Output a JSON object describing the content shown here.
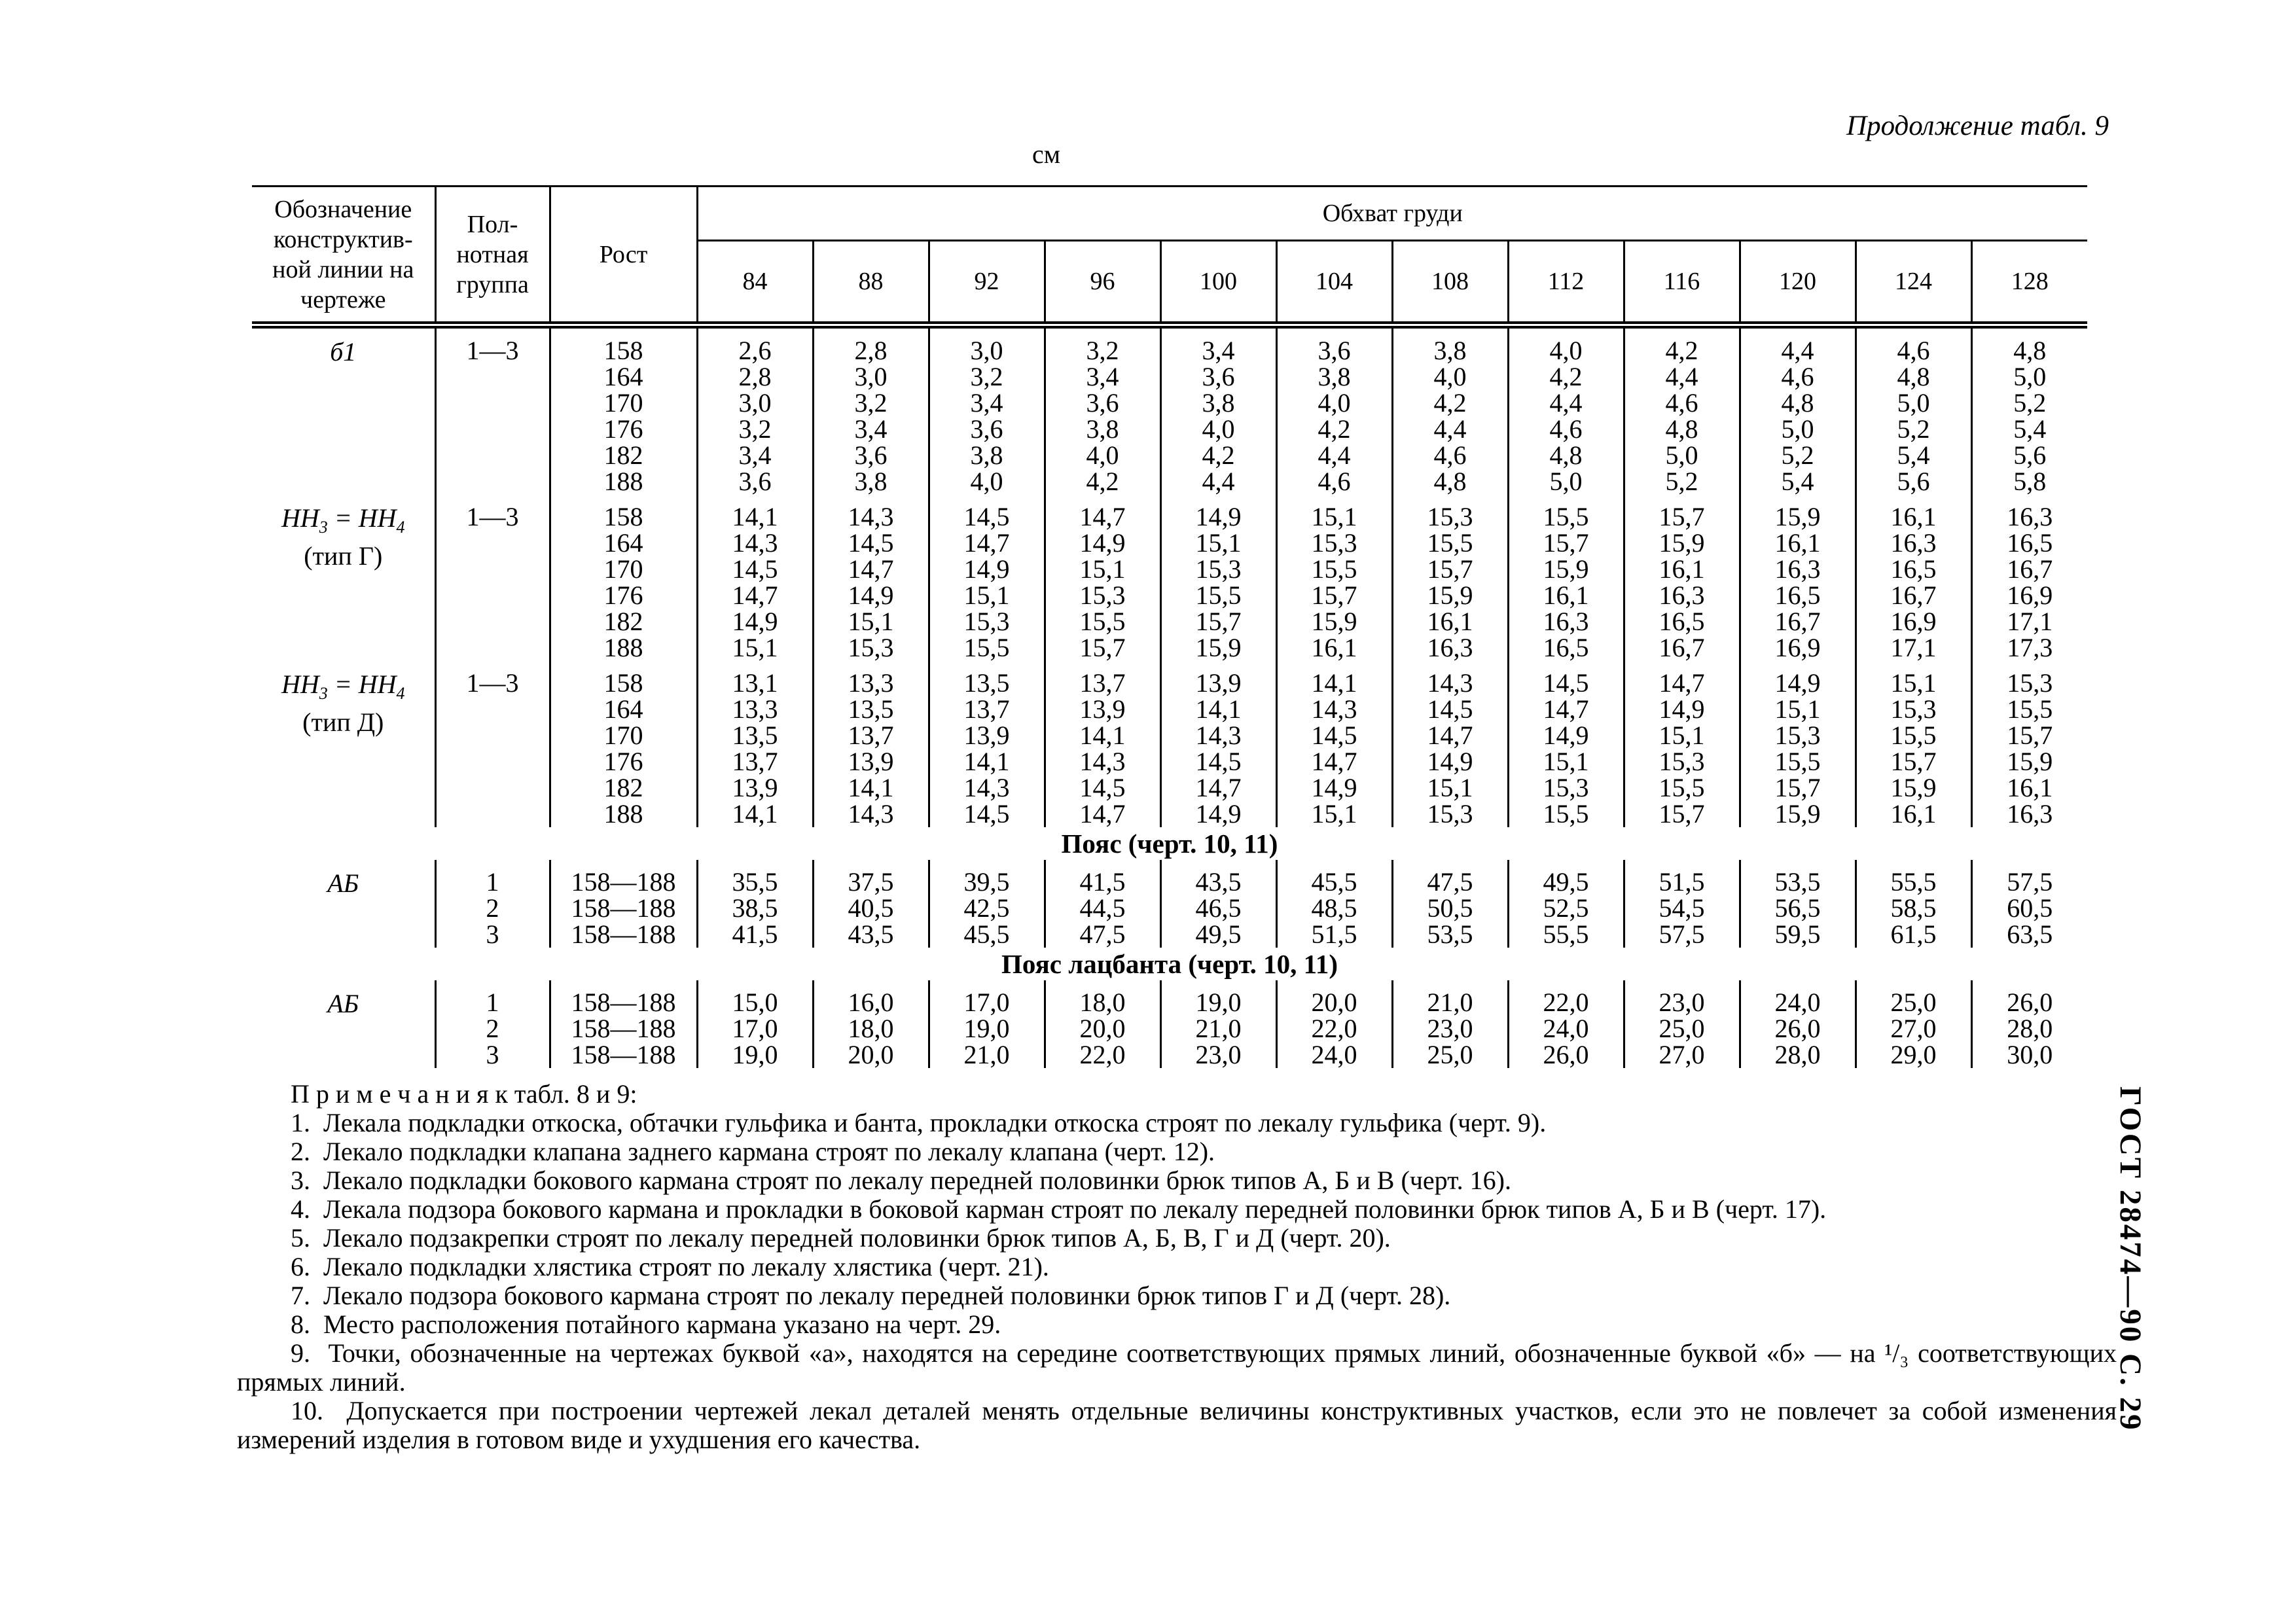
{
  "page": {
    "continuation_label": "Продолжение табл. 9",
    "units_label": "см",
    "side_label": "ГОСТ 28474—90 С. 29"
  },
  "table": {
    "header": {
      "designation_lines": [
        "Обозначение",
        "конструктив-",
        "ной линии на",
        "чертеже"
      ],
      "group_lines": [
        "Пол-",
        "нотная",
        "группа"
      ],
      "rost": "Рост",
      "chest": "Обхват груди",
      "sizes": [
        "84",
        "88",
        "92",
        "96",
        "100",
        "104",
        "108",
        "112",
        "116",
        "120",
        "124",
        "128"
      ]
    },
    "sections": [
      {
        "type": "rows",
        "blocks": [
          {
            "designation": [
              [
                {
                  "t": "б1",
                  "it": true
                }
              ]
            ],
            "group": "1—3",
            "rows": [
              {
                "rost": "158",
                "values": [
                  "2,6",
                  "2,8",
                  "3,0",
                  "3,2",
                  "3,4",
                  "3,6",
                  "3,8",
                  "4,0",
                  "4,2",
                  "4,4",
                  "4,6",
                  "4,8"
                ]
              },
              {
                "rost": "164",
                "values": [
                  "2,8",
                  "3,0",
                  "3,2",
                  "3,4",
                  "3,6",
                  "3,8",
                  "4,0",
                  "4,2",
                  "4,4",
                  "4,6",
                  "4,8",
                  "5,0"
                ]
              },
              {
                "rost": "170",
                "values": [
                  "3,0",
                  "3,2",
                  "3,4",
                  "3,6",
                  "3,8",
                  "4,0",
                  "4,2",
                  "4,4",
                  "4,6",
                  "4,8",
                  "5,0",
                  "5,2"
                ]
              },
              {
                "rost": "176",
                "values": [
                  "3,2",
                  "3,4",
                  "3,6",
                  "3,8",
                  "4,0",
                  "4,2",
                  "4,4",
                  "4,6",
                  "4,8",
                  "5,0",
                  "5,2",
                  "5,4"
                ]
              },
              {
                "rost": "182",
                "values": [
                  "3,4",
                  "3,6",
                  "3,8",
                  "4,0",
                  "4,2",
                  "4,4",
                  "4,6",
                  "4,8",
                  "5,0",
                  "5,2",
                  "5,4",
                  "5,6"
                ]
              },
              {
                "rost": "188",
                "values": [
                  "3,6",
                  "3,8",
                  "4,0",
                  "4,2",
                  "4,4",
                  "4,6",
                  "4,8",
                  "5,0",
                  "5,2",
                  "5,4",
                  "5,6",
                  "5,8"
                ]
              }
            ]
          },
          {
            "designation": [
              [
                {
                  "t": "НН",
                  "it": true
                },
                {
                  "t": "3",
                  "it": true,
                  "sub": true
                },
                {
                  "t": " = ",
                  "it": true
                },
                {
                  "t": "НН",
                  "it": true
                },
                {
                  "t": "4",
                  "it": true,
                  "sub": true
                }
              ],
              [
                {
                  "t": "(тип Г)"
                }
              ]
            ],
            "group": "1—3",
            "rows": [
              {
                "rost": "158",
                "values": [
                  "14,1",
                  "14,3",
                  "14,5",
                  "14,7",
                  "14,9",
                  "15,1",
                  "15,3",
                  "15,5",
                  "15,7",
                  "15,9",
                  "16,1",
                  "16,3"
                ]
              },
              {
                "rost": "164",
                "values": [
                  "14,3",
                  "14,5",
                  "14,7",
                  "14,9",
                  "15,1",
                  "15,3",
                  "15,5",
                  "15,7",
                  "15,9",
                  "16,1",
                  "16,3",
                  "16,5"
                ]
              },
              {
                "rost": "170",
                "values": [
                  "14,5",
                  "14,7",
                  "14,9",
                  "15,1",
                  "15,3",
                  "15,5",
                  "15,7",
                  "15,9",
                  "16,1",
                  "16,3",
                  "16,5",
                  "16,7"
                ]
              },
              {
                "rost": "176",
                "values": [
                  "14,7",
                  "14,9",
                  "15,1",
                  "15,3",
                  "15,5",
                  "15,7",
                  "15,9",
                  "16,1",
                  "16,3",
                  "16,5",
                  "16,7",
                  "16,9"
                ]
              },
              {
                "rost": "182",
                "values": [
                  "14,9",
                  "15,1",
                  "15,3",
                  "15,5",
                  "15,7",
                  "15,9",
                  "16,1",
                  "16,3",
                  "16,5",
                  "16,7",
                  "16,9",
                  "17,1"
                ]
              },
              {
                "rost": "188",
                "values": [
                  "15,1",
                  "15,3",
                  "15,5",
                  "15,7",
                  "15,9",
                  "16,1",
                  "16,3",
                  "16,5",
                  "16,7",
                  "16,9",
                  "17,1",
                  "17,3"
                ]
              }
            ]
          },
          {
            "designation": [
              [
                {
                  "t": "НН",
                  "it": true
                },
                {
                  "t": "3",
                  "it": true,
                  "sub": true
                },
                {
                  "t": " = ",
                  "it": true
                },
                {
                  "t": "НН",
                  "it": true
                },
                {
                  "t": "4",
                  "it": true,
                  "sub": true
                }
              ],
              [
                {
                  "t": "(тип Д)"
                }
              ]
            ],
            "group": "1—3",
            "rows": [
              {
                "rost": "158",
                "values": [
                  "13,1",
                  "13,3",
                  "13,5",
                  "13,7",
                  "13,9",
                  "14,1",
                  "14,3",
                  "14,5",
                  "14,7",
                  "14,9",
                  "15,1",
                  "15,3"
                ]
              },
              {
                "rost": "164",
                "values": [
                  "13,3",
                  "13,5",
                  "13,7",
                  "13,9",
                  "14,1",
                  "14,3",
                  "14,5",
                  "14,7",
                  "14,9",
                  "15,1",
                  "15,3",
                  "15,5"
                ]
              },
              {
                "rost": "170",
                "values": [
                  "13,5",
                  "13,7",
                  "13,9",
                  "14,1",
                  "14,3",
                  "14,5",
                  "14,7",
                  "14,9",
                  "15,1",
                  "15,3",
                  "15,5",
                  "15,7"
                ]
              },
              {
                "rost": "176",
                "values": [
                  "13,7",
                  "13,9",
                  "14,1",
                  "14,3",
                  "14,5",
                  "14,7",
                  "14,9",
                  "15,1",
                  "15,3",
                  "15,5",
                  "15,7",
                  "15,9"
                ]
              },
              {
                "rost": "182",
                "values": [
                  "13,9",
                  "14,1",
                  "14,3",
                  "14,5",
                  "14,7",
                  "14,9",
                  "15,1",
                  "15,3",
                  "15,5",
                  "15,7",
                  "15,9",
                  "16,1"
                ]
              },
              {
                "rost": "188",
                "values": [
                  "14,1",
                  "14,3",
                  "14,5",
                  "14,7",
                  "14,9",
                  "15,1",
                  "15,3",
                  "15,5",
                  "15,7",
                  "15,9",
                  "16,1",
                  "16,3"
                ]
              }
            ]
          }
        ]
      },
      {
        "type": "title",
        "text": "Пояс (черт. 10, 11)"
      },
      {
        "type": "rows",
        "blocks": [
          {
            "designation": [
              [
                {
                  "t": "АБ",
                  "it": true
                }
              ]
            ],
            "group": null,
            "rows": [
              {
                "group": "1",
                "rost": "158—188",
                "values": [
                  "35,5",
                  "37,5",
                  "39,5",
                  "41,5",
                  "43,5",
                  "45,5",
                  "47,5",
                  "49,5",
                  "51,5",
                  "53,5",
                  "55,5",
                  "57,5"
                ]
              },
              {
                "group": "2",
                "rost": "158—188",
                "values": [
                  "38,5",
                  "40,5",
                  "42,5",
                  "44,5",
                  "46,5",
                  "48,5",
                  "50,5",
                  "52,5",
                  "54,5",
                  "56,5",
                  "58,5",
                  "60,5"
                ]
              },
              {
                "group": "3",
                "rost": "158—188",
                "values": [
                  "41,5",
                  "43,5",
                  "45,5",
                  "47,5",
                  "49,5",
                  "51,5",
                  "53,5",
                  "55,5",
                  "57,5",
                  "59,5",
                  "61,5",
                  "63,5"
                ]
              }
            ]
          }
        ]
      },
      {
        "type": "title",
        "text": "Пояс лацбанта (черт. 10, 11)"
      },
      {
        "type": "rows",
        "blocks": [
          {
            "designation": [
              [
                {
                  "t": "АБ",
                  "it": true
                }
              ]
            ],
            "group": null,
            "rows": [
              {
                "group": "1",
                "rost": "158—188",
                "values": [
                  "15,0",
                  "16,0",
                  "17,0",
                  "18,0",
                  "19,0",
                  "20,0",
                  "21,0",
                  "22,0",
                  "23,0",
                  "24,0",
                  "25,0",
                  "26,0"
                ]
              },
              {
                "group": "2",
                "rost": "158—188",
                "values": [
                  "17,0",
                  "18,0",
                  "19,0",
                  "20,0",
                  "21,0",
                  "22,0",
                  "23,0",
                  "24,0",
                  "25,0",
                  "26,0",
                  "27,0",
                  "28,0"
                ]
              },
              {
                "group": "3",
                "rost": "158—188",
                "values": [
                  "19,0",
                  "20,0",
                  "21,0",
                  "22,0",
                  "23,0",
                  "24,0",
                  "25,0",
                  "26,0",
                  "27,0",
                  "28,0",
                  "29,0",
                  "30,0"
                ]
              }
            ]
          }
        ]
      }
    ]
  },
  "notes": {
    "heading_spaced": "П р и м е ч а н и я",
    "heading_rest": " к табл. 8 и 9:",
    "items": [
      {
        "num": "1.",
        "text": "Лекала подкладки откоска, обтачки гульфика и банта, прокладки откоска строят по лекалу гульфика (черт. 9)."
      },
      {
        "num": "2.",
        "text": "Лекало подкладки клапана заднего кармана строят по лекалу клапана (черт. 12)."
      },
      {
        "num": "3.",
        "text": "Лекало подкладки бокового кармана строят по лекалу передней половинки брюк типов А, Б и В (черт. 16)."
      },
      {
        "num": "4.",
        "text": "Лекала подзора бокового кармана и прокладки в боковой карман строят по лекалу передней половинки брюк типов А, Б и В (черт. 17)."
      },
      {
        "num": "5.",
        "text": "Лекало подзакрепки строят по лекалу передней половинки брюк типов А, Б, В, Г и Д (черт. 20)."
      },
      {
        "num": "6.",
        "text": "Лекало подкладки хлястика строят по лекалу хлястика (черт. 21)."
      },
      {
        "num": "7.",
        "text": "Лекало подзора бокового кармана строят по лекалу передней половинки брюк типов Г и Д (черт. 28)."
      },
      {
        "num": "8.",
        "text": "Место расположения потайного кармана указано на черт. 29."
      },
      {
        "num": "9.",
        "text": "Точки, обозначенные на чертежах буквой «а», находятся на середине соответствующих прямых линий, обозначенные буквой «б» — на ¹/₃ соответствующих прямых линий."
      },
      {
        "num": "10.",
        "text": "Допускается при построении чертежей лекал деталей менять отдельные величины конструктивных участков, если это не повлечет за собой изменения измерений изделия в готовом виде и ухудшения его качества."
      }
    ]
  }
}
